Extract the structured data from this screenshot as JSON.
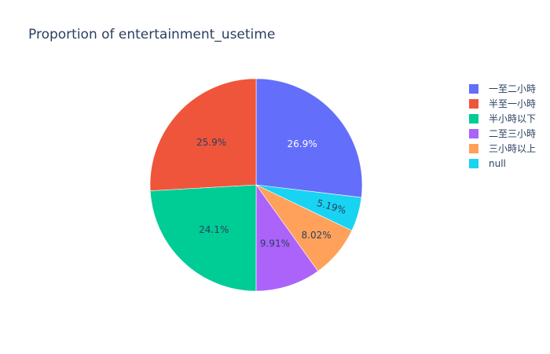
{
  "chart_data": {
    "type": "pie",
    "title": "Proportion of entertainment_usetime",
    "direction": "clockwise",
    "start_angle_deg": 90,
    "slices": [
      {
        "label": "一至二小時",
        "value": 26.9,
        "text": "26.9%",
        "color": "#636efa"
      },
      {
        "label": "半至一小時",
        "value": 25.9,
        "text": "25.9%",
        "color": "#ef553b"
      },
      {
        "label": "半小時以下",
        "value": 24.1,
        "text": "24.1%",
        "color": "#00cc96"
      },
      {
        "label": "二至三小時",
        "value": 9.91,
        "text": "9.91%",
        "color": "#ab63fa"
      },
      {
        "label": "三小時以上",
        "value": 8.02,
        "text": "8.02%",
        "color": "#ffa15a"
      },
      {
        "label": "null",
        "value": 5.19,
        "text": "5.19%",
        "color": "#19d3f3"
      }
    ],
    "slice_order_clockwise": [
      "一至二小時",
      "null",
      "三小時以上",
      "二至三小時",
      "半小時以下",
      "半至一小時"
    ],
    "legend_position": "right"
  }
}
